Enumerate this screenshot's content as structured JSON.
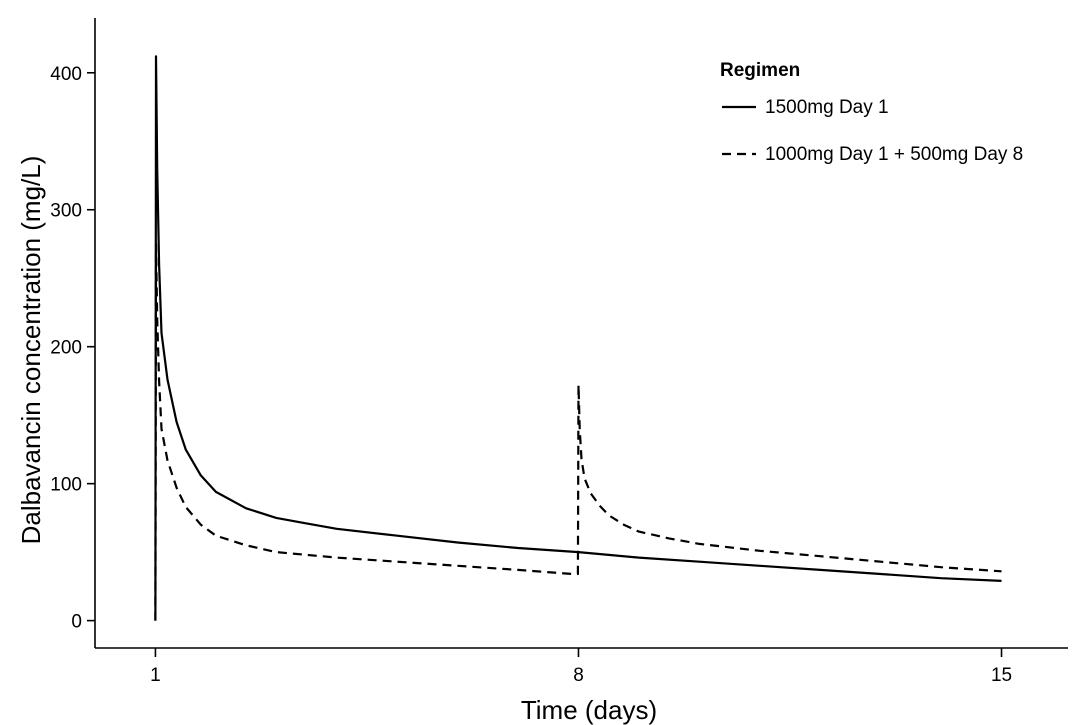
{
  "chart_data": {
    "type": "line",
    "title": "",
    "xlabel": "Time (days)",
    "ylabel": "Dalbavancin concentration (mg/L)",
    "xlim": [
      0,
      16.1
    ],
    "ylim": [
      -20,
      440
    ],
    "x_ticks": [
      1,
      8,
      15
    ],
    "y_ticks": [
      0,
      100,
      200,
      300,
      400
    ],
    "grid": false,
    "legend": {
      "title": "Regimen",
      "placement": "top-right"
    },
    "series": [
      {
        "name": "1500mg Day 1",
        "line_style": "solid",
        "color": "#000000",
        "x": [
          1.0,
          1.01,
          1.03,
          1.06,
          1.1,
          1.2,
          1.35,
          1.5,
          1.75,
          2.0,
          2.5,
          3.0,
          3.5,
          4.0,
          5.0,
          6.0,
          7.0,
          8.0,
          9.0,
          10.0,
          11.0,
          12.0,
          13.0,
          14.0,
          15.0
        ],
        "y": [
          0,
          412,
          330,
          260,
          210,
          176,
          145,
          125,
          106,
          94,
          82,
          75,
          71,
          67,
          62,
          57,
          53,
          50,
          46,
          43,
          40,
          37,
          34,
          31,
          29
        ]
      },
      {
        "name": "1000mg Day 1 + 500mg Day 8",
        "line_style": "dashed",
        "color": "#000000",
        "x": [
          1.0,
          1.01,
          1.03,
          1.06,
          1.1,
          1.2,
          1.35,
          1.5,
          1.75,
          2.0,
          2.5,
          3.0,
          4.0,
          5.0,
          6.0,
          7.0,
          7.9,
          7.99,
          8.0,
          8.02,
          8.05,
          8.1,
          8.2,
          8.35,
          8.5,
          8.75,
          9.0,
          9.5,
          10.0,
          11.0,
          12.0,
          13.0,
          14.0,
          15.0
        ],
        "y": [
          0,
          275,
          220,
          175,
          140,
          117,
          97,
          83,
          70,
          62,
          55,
          50,
          46,
          43,
          40,
          37,
          34,
          34,
          172,
          140,
          118,
          104,
          93,
          84,
          77,
          70,
          65,
          60,
          56,
          51,
          47,
          43,
          39,
          36
        ]
      }
    ]
  }
}
